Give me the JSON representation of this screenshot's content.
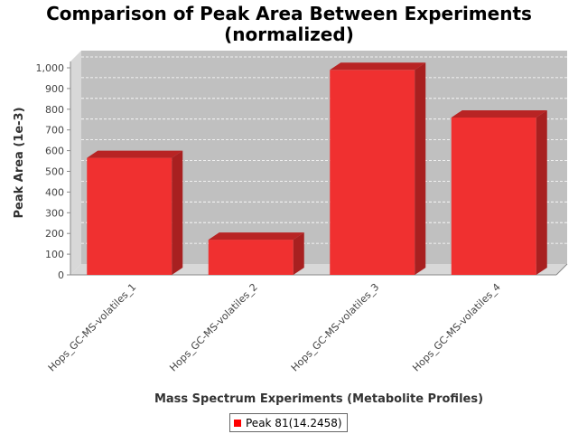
{
  "chart_data": {
    "type": "bar",
    "title": "Comparison of Peak Area Between Experiments",
    "subtitle": "(normalized)",
    "xlabel": "Mass Spectrum Experiments (Metabolite Profiles)",
    "ylabel": "Peak Area (1e-3)",
    "categories": [
      "Hops_GC-MS-volatiles_1",
      "Hops_GC-MS-volatiles_2",
      "Hops_GC-MS-volatiles_3",
      "Hops_GC-MS-volatiles_4"
    ],
    "series": [
      {
        "name": "Peak 81(14.2458)",
        "values": [
          565,
          170,
          990,
          760
        ]
      }
    ],
    "ylim": [
      0,
      1000
    ],
    "yticks": [
      0,
      100,
      200,
      300,
      400,
      500,
      600,
      700,
      800,
      900,
      1000
    ],
    "ytick_labels": [
      "0",
      "100",
      "200",
      "300",
      "400",
      "500",
      "600",
      "700",
      "800",
      "900",
      "1,000"
    ],
    "grid": true,
    "legend_position": "bottom-center",
    "colors": {
      "bar_front": "#f03030",
      "bar_top": "#b82424",
      "bar_side": "#a82020",
      "plot_bg": "#c0c0c0",
      "plot_wall": "#d8d8d8",
      "legend_swatch": "#ff0000"
    }
  }
}
